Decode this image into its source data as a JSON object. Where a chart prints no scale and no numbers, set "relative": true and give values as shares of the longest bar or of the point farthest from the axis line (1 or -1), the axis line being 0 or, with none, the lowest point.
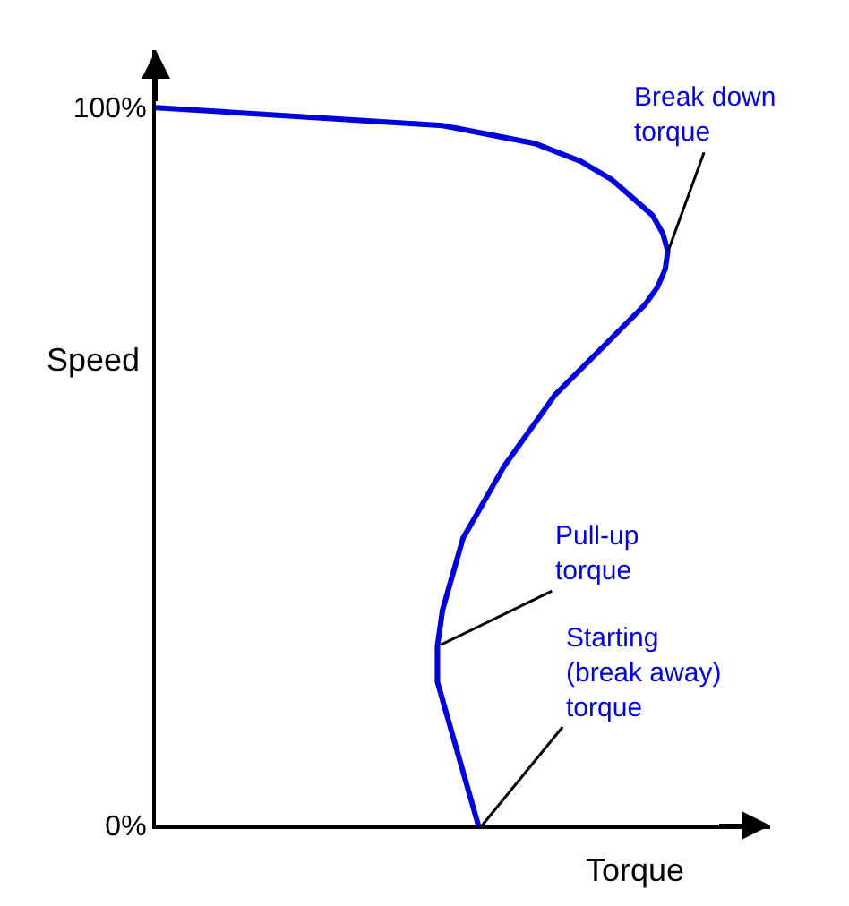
{
  "chart_data": {
    "type": "line",
    "orientation": "horizontal",
    "relative": true,
    "ylabel": "Speed",
    "xlabel": "Torque",
    "categories": [
      "100%",
      null,
      null,
      null,
      null,
      null,
      null,
      null,
      null,
      null,
      null,
      null,
      null,
      null,
      null,
      null,
      null,
      null,
      null,
      null,
      null,
      null,
      null,
      null,
      null,
      null,
      null,
      null,
      null,
      null,
      null,
      null,
      null,
      null,
      null,
      null,
      null,
      null,
      null,
      null,
      "0%"
    ],
    "series": [
      {
        "color": "#0000dd",
        "values": [
          0,
          0.56,
          0.74,
          0.83,
          0.89,
          0.93,
          0.97,
          0.99,
          1.0,
          0.995,
          0.98,
          0.955,
          0.92,
          0.885,
          0.85,
          0.815,
          0.78,
          0.755,
          0.73,
          0.705,
          0.68,
          0.66,
          0.64,
          0.62,
          0.6,
          0.59,
          0.58,
          0.57,
          0.56,
          0.555,
          0.55,
          0.55,
          0.55,
          0.56,
          0.57,
          0.58,
          0.59,
          0.6,
          0.61,
          0.62,
          0.63
        ]
      }
    ],
    "marker": "none",
    "line_style": "solid",
    "annotations": [
      "Break down\ntorque",
      "Pull-up\ntorque",
      "Starting\n(break away)\ntorque"
    ]
  }
}
